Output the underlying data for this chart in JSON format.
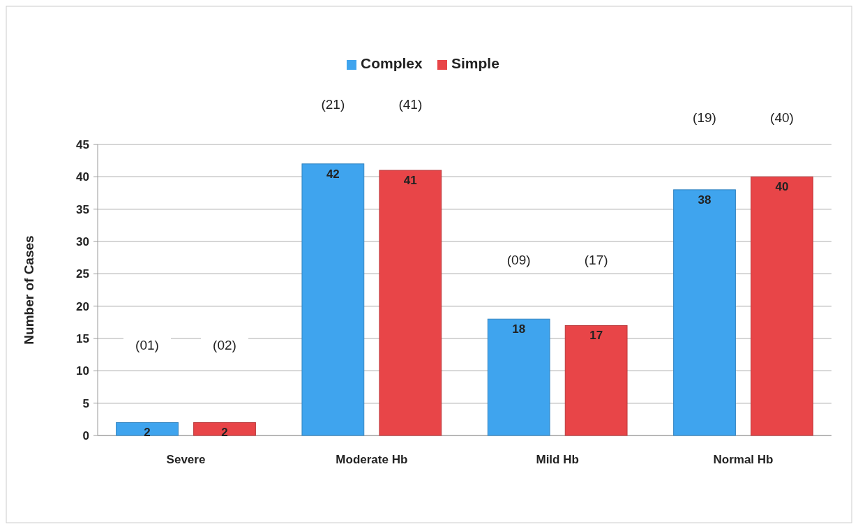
{
  "chart_data": {
    "type": "bar",
    "ylabel": "Number of Cases",
    "categories": [
      "Severe",
      "Moderate Hb",
      "Mild Hb",
      "Normal Hb"
    ],
    "series": [
      {
        "name": "Complex",
        "color": "#3fa4ee",
        "values": [
          2,
          42,
          18,
          38
        ]
      },
      {
        "name": "Simple",
        "color": "#e84548",
        "values": [
          2,
          41,
          17,
          40
        ]
      }
    ],
    "ylim": [
      0,
      45
    ],
    "yticks": [
      0,
      5,
      10,
      15,
      20,
      25,
      30,
      35,
      40,
      45
    ],
    "grid": "y",
    "legend": "top",
    "data_labels": true,
    "annotations": [
      "(01)",
      "(02)",
      "(21)",
      "(41)",
      "(09)",
      "(17)",
      "(19)",
      "(40)"
    ]
  }
}
